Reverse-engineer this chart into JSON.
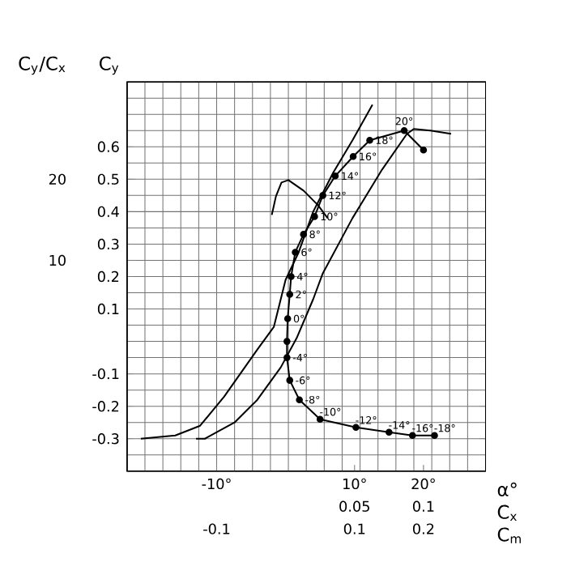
{
  "chart_data": [
    {
      "type": "line",
      "xlabel": "α°",
      "ylabel": "C$_{y}$",
      "y2label": "C$_{y}$/C$_{x}$",
      "xlim": [
        -23,
        29
      ],
      "xticks": [
        {
          "value": -10,
          "label": "-10°"
        },
        {
          "value": 10,
          "label": "10°"
        },
        {
          "value": 20,
          "label": "20°"
        }
      ],
      "ylim": [
        -0.4,
        0.8
      ],
      "yticks": [
        -0.3,
        -0.2,
        -0.1,
        0.1,
        0.2,
        0.3,
        0.4,
        0.5,
        0.6
      ],
      "y2lim": [
        -16,
        32
      ],
      "y2ticks": [
        10,
        20
      ],
      "grid": true,
      "marker": "none",
      "line_style": "solid",
      "series": [
        {
          "color": "#000000",
          "x": [
            -13,
            -11.7,
            -7.4,
            -4.1,
            -0.7,
            1.6,
            4,
            5.4,
            9.7,
            14,
            17.6,
            18.6,
            21,
            24
          ],
          "values": [
            -0.3,
            -0.3,
            -0.25,
            -0.18,
            -0.08,
            0.01,
            0.13,
            0.21,
            0.38,
            0.53,
            0.64,
            0.655,
            0.65,
            0.64
          ]
        },
        {
          "axis": "y2",
          "color": "#000000",
          "x": [
            -2,
            -1.4,
            -0.6,
            0.4,
            2.6,
            4.7,
            6.1
          ],
          "values": [
            15.6,
            17.9,
            19.6,
            19.9,
            18.6,
            16.8,
            15.2
          ]
        }
      ]
    },
    {
      "type": "line",
      "xlabel": "C$_{x}$",
      "xlim": [
        -0.115,
        0.145
      ],
      "xticks": [
        0.05,
        0.1
      ],
      "ylim": [
        -0.4,
        0.8
      ],
      "tick_labels": "x",
      "marker": "circle",
      "line_style": "solid",
      "series": [
        {
          "color": "#000000",
          "x": [
            0.108,
            0.092,
            0.075,
            0.051,
            0.025,
            0.01,
            0.003,
            0.001,
            0.001,
            0.0015,
            0.003,
            0.004,
            0.007,
            0.013,
            0.021,
            0.027,
            0.036,
            0.049,
            0.061,
            0.086,
            0.1
          ],
          "values": [
            -0.29,
            -0.29,
            -0.28,
            -0.265,
            -0.24,
            -0.18,
            -0.12,
            -0.05,
            0.0,
            0.07,
            0.145,
            0.2,
            0.275,
            0.33,
            0.385,
            0.45,
            0.51,
            0.57,
            0.62,
            0.65,
            0.59
          ]
        }
      ],
      "annotations": [
        {
          "text": "-18°",
          "x": 0.108,
          "y": -0.29
        },
        {
          "text": "-16°",
          "x": 0.092,
          "y": -0.29
        },
        {
          "text": "-14°",
          "x": 0.075,
          "y": -0.28
        },
        {
          "text": "-12°",
          "x": 0.051,
          "y": -0.265
        },
        {
          "text": "-10°",
          "x": 0.025,
          "y": -0.24
        },
        {
          "text": "-8°",
          "x": 0.01,
          "y": -0.18
        },
        {
          "text": "-6°",
          "x": 0.003,
          "y": -0.12
        },
        {
          "text": "-4°",
          "x": 0.001,
          "y": -0.05
        },
        {
          "text": "0°",
          "x": 0.0015,
          "y": 0.07
        },
        {
          "text": "2°",
          "x": 0.003,
          "y": 0.145
        },
        {
          "text": "4°",
          "x": 0.004,
          "y": 0.2
        },
        {
          "text": "6°",
          "x": 0.007,
          "y": 0.275
        },
        {
          "text": "8°",
          "x": 0.013,
          "y": 0.33
        },
        {
          "text": "10°",
          "x": 0.021,
          "y": 0.385
        },
        {
          "text": "12°",
          "x": 0.027,
          "y": 0.45
        },
        {
          "text": "14°",
          "x": 0.036,
          "y": 0.51
        },
        {
          "text": "16°",
          "x": 0.049,
          "y": 0.57
        },
        {
          "text": "18°",
          "x": 0.061,
          "y": 0.62
        },
        {
          "text": "20°",
          "x": 0.086,
          "y": 0.65
        }
      ]
    },
    {
      "type": "line",
      "xlabel": "C$_{m}$",
      "xlim": [
        -0.23,
        0.29
      ],
      "xticks": [
        -0.1,
        0.1,
        0.2
      ],
      "ylim": [
        -0.4,
        0.8
      ],
      "tick_labels": "x",
      "marker": "none",
      "line_style": "solid",
      "series": [
        {
          "color": "#000000",
          "x": [
            -0.21,
            -0.16,
            -0.124,
            -0.089,
            -0.041,
            -0.017,
            0,
            0.019,
            0.04,
            0.069,
            0.097,
            0.126
          ],
          "values": [
            -0.3,
            -0.29,
            -0.26,
            -0.17,
            -0.025,
            0.045,
            0.19,
            0.275,
            0.4,
            0.52,
            0.62,
            0.73
          ]
        }
      ]
    }
  ]
}
